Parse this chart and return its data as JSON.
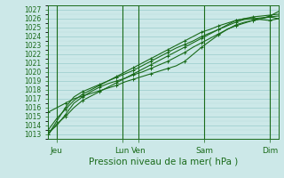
{
  "bg_color": "#cce8e8",
  "grid_color_major": "#99cccc",
  "grid_color_minor": "#b8dddd",
  "line_color": "#1a6b1a",
  "xlabel": "Pression niveau de la mer( hPa )",
  "xlabel_fontsize": 7.5,
  "ytick_fontsize": 5.5,
  "xtick_fontsize": 6.5,
  "ylim": [
    1012.5,
    1027.5
  ],
  "xlim": [
    0,
    14
  ],
  "xtick_positions": [
    0.5,
    4.5,
    5.5,
    9.5,
    13.5
  ],
  "xtick_labels": [
    "Jeu",
    "Lun",
    "Ven",
    "Sam",
    "Dim"
  ],
  "vline_positions": [
    0.5,
    4.5,
    5.5,
    9.5,
    13.5
  ],
  "series": [
    [
      1013.0,
      1014.2,
      1015.0,
      1016.0,
      1016.8,
      1017.3,
      1017.8,
      1018.3,
      1018.8,
      1019.3,
      1019.8,
      1020.3,
      1020.8,
      1021.3,
      1021.8,
      1022.3,
      1022.8,
      1023.3,
      1023.8,
      1024.3,
      1024.8,
      1025.3,
      1025.8,
      1026.0,
      1026.0,
      1025.9,
      1025.8,
      1026.0
    ],
    [
      1015.5,
      1016.0,
      1016.5,
      1017.0,
      1017.3,
      1017.6,
      1017.9,
      1018.2,
      1018.5,
      1018.9,
      1019.2,
      1019.5,
      1019.8,
      1020.1,
      1020.4,
      1020.7,
      1021.2,
      1022.0,
      1022.8,
      1023.5,
      1024.2,
      1024.8,
      1025.2,
      1025.5,
      1025.8,
      1026.0,
      1026.3,
      1026.8
    ],
    [
      1013.2,
      1014.0,
      1015.2,
      1016.5,
      1017.2,
      1017.8,
      1018.3,
      1018.7,
      1019.0,
      1019.3,
      1019.7,
      1020.0,
      1020.4,
      1020.8,
      1021.2,
      1021.7,
      1022.2,
      1022.8,
      1023.3,
      1023.8,
      1024.3,
      1024.8,
      1025.3,
      1025.6,
      1025.8,
      1026.0,
      1026.2,
      1026.3
    ],
    [
      1013.5,
      1014.8,
      1015.8,
      1016.8,
      1017.5,
      1018.0,
      1018.5,
      1019.0,
      1019.5,
      1020.0,
      1020.5,
      1021.0,
      1021.5,
      1022.0,
      1022.5,
      1023.0,
      1023.5,
      1024.0,
      1024.5,
      1024.8,
      1025.2,
      1025.5,
      1025.8,
      1026.0,
      1026.2,
      1026.3,
      1026.4,
      1026.5
    ],
    [
      1013.0,
      1014.5,
      1016.0,
      1017.2,
      1017.8,
      1018.2,
      1018.6,
      1019.0,
      1019.4,
      1019.8,
      1020.2,
      1020.7,
      1021.2,
      1021.7,
      1022.2,
      1022.7,
      1023.1,
      1023.5,
      1024.0,
      1024.4,
      1024.8,
      1025.2,
      1025.6,
      1025.9,
      1026.0,
      1026.1,
      1026.2,
      1026.0
    ]
  ],
  "marker": "+",
  "markersize": 3,
  "linewidth": 0.8
}
